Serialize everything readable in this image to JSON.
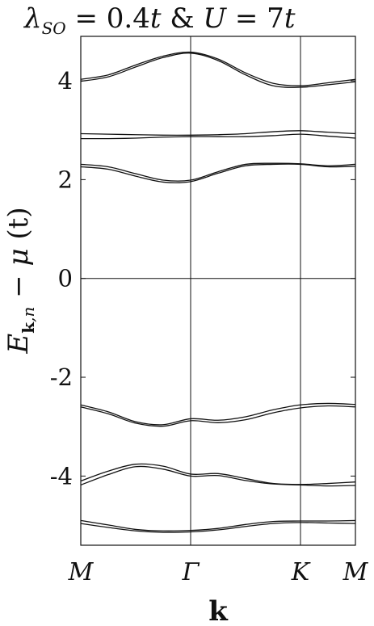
{
  "chart_data": {
    "type": "line",
    "title": "λ_SO = 0.4t & U = 7t",
    "title_parts": {
      "lambda": "λ",
      "lambda_sub": "SO",
      "eq1": " = 0.4",
      "t1": "t",
      "amp": " & ",
      "U": "U",
      "eq2": " = 7",
      "t2": "t"
    },
    "xlabel": "k",
    "ylabel": "E_k,n − μ (t)",
    "ylabel_parts": {
      "E": "E",
      "sub_k": "k",
      "sub_rest": ",n",
      "mid": " − ",
      "mu": "μ",
      "unit": " (t)"
    },
    "x_ticks": [
      {
        "label": "M",
        "pos": 0
      },
      {
        "label": "Γ",
        "pos": 1
      },
      {
        "label": "K",
        "pos": 2
      },
      {
        "label": "M",
        "pos": 2.5
      }
    ],
    "x_range": [
      0,
      2.5
    ],
    "ylim": [
      -5.4,
      4.9
    ],
    "y_ticks": [
      4,
      2,
      0,
      -2,
      -4
    ],
    "y_tick_labels": [
      "4",
      "2",
      "0",
      "-2",
      "-4"
    ],
    "reference_lines": {
      "horizontal_y": 0,
      "vertical_x": [
        1,
        2
      ]
    },
    "series": [
      {
        "x": [
          0,
          0.25,
          0.5,
          0.75,
          1.0,
          1.25,
          1.5,
          1.75,
          2.0,
          2.25,
          2.5
        ],
        "y": [
          4.03,
          4.12,
          4.32,
          4.5,
          4.58,
          4.44,
          4.16,
          3.95,
          3.9,
          3.96,
          4.03
        ]
      },
      {
        "x": [
          0,
          0.25,
          0.5,
          0.75,
          1.0,
          1.25,
          1.5,
          1.75,
          2.0,
          2.25,
          2.5
        ],
        "y": [
          3.99,
          4.08,
          4.28,
          4.47,
          4.56,
          4.41,
          4.12,
          3.9,
          3.87,
          3.92,
          3.98
        ]
      },
      {
        "x": [
          0,
          0.25,
          0.5,
          0.75,
          1.0,
          1.25,
          1.5,
          1.75,
          2.0,
          2.25,
          2.5
        ],
        "y": [
          2.93,
          2.92,
          2.91,
          2.9,
          2.9,
          2.91,
          2.93,
          2.97,
          2.99,
          2.96,
          2.93
        ]
      },
      {
        "x": [
          0,
          0.25,
          0.5,
          0.75,
          1.0,
          1.25,
          1.5,
          1.75,
          2.0,
          2.25,
          2.5
        ],
        "y": [
          2.83,
          2.83,
          2.84,
          2.86,
          2.87,
          2.87,
          2.87,
          2.89,
          2.92,
          2.88,
          2.84
        ]
      },
      {
        "x": [
          0,
          0.25,
          0.5,
          0.75,
          1.0,
          1.25,
          1.5,
          1.75,
          2.0,
          2.25,
          2.5
        ],
        "y": [
          2.31,
          2.26,
          2.12,
          1.99,
          1.99,
          2.16,
          2.31,
          2.33,
          2.32,
          2.28,
          2.31
        ]
      },
      {
        "x": [
          0,
          0.25,
          0.5,
          0.75,
          1.0,
          1.25,
          1.5,
          1.75,
          2.0,
          2.25,
          2.5
        ],
        "y": [
          2.26,
          2.21,
          2.07,
          1.95,
          1.96,
          2.13,
          2.28,
          2.31,
          2.31,
          2.26,
          2.27
        ]
      },
      {
        "x": [
          0,
          0.25,
          0.5,
          0.75,
          1.0,
          1.25,
          1.5,
          1.75,
          2.0,
          2.25,
          2.5
        ],
        "y": [
          -2.56,
          -2.7,
          -2.9,
          -2.96,
          -2.84,
          -2.87,
          -2.8,
          -2.66,
          -2.56,
          -2.53,
          -2.55
        ]
      },
      {
        "x": [
          0,
          0.25,
          0.5,
          0.75,
          1.0,
          1.25,
          1.5,
          1.75,
          2.0,
          2.25,
          2.5
        ],
        "y": [
          -2.6,
          -2.74,
          -2.93,
          -2.99,
          -2.88,
          -2.92,
          -2.86,
          -2.72,
          -2.62,
          -2.58,
          -2.6
        ]
      },
      {
        "x": [
          0,
          0.25,
          0.5,
          0.75,
          1.0,
          1.25,
          1.5,
          1.75,
          2.0,
          2.25,
          2.5
        ],
        "y": [
          -4.1,
          -3.9,
          -3.76,
          -3.8,
          -3.96,
          -3.95,
          -4.05,
          -4.15,
          -4.17,
          -4.15,
          -4.12
        ]
      },
      {
        "x": [
          0,
          0.25,
          0.5,
          0.75,
          1.0,
          1.25,
          1.5,
          1.75,
          2.0,
          2.25,
          2.5
        ],
        "y": [
          -4.18,
          -3.97,
          -3.81,
          -3.86,
          -4.0,
          -3.99,
          -4.09,
          -4.16,
          -4.18,
          -4.2,
          -4.19
        ]
      },
      {
        "x": [
          0,
          0.25,
          0.5,
          0.75,
          1.0,
          1.25,
          1.5,
          1.75,
          2.0,
          2.25,
          2.5
        ],
        "y": [
          -4.9,
          -4.99,
          -5.08,
          -5.11,
          -5.1,
          -5.06,
          -4.98,
          -4.92,
          -4.91,
          -4.91,
          -4.9
        ]
      },
      {
        "x": [
          0,
          0.25,
          0.5,
          0.75,
          1.0,
          1.25,
          1.5,
          1.75,
          2.0,
          2.25,
          2.5
        ],
        "y": [
          -4.96,
          -5.04,
          -5.11,
          -5.14,
          -5.13,
          -5.09,
          -5.02,
          -4.96,
          -4.94,
          -4.95,
          -4.96
        ]
      }
    ],
    "grid": false,
    "legend": "none",
    "line_color": "#111111"
  }
}
